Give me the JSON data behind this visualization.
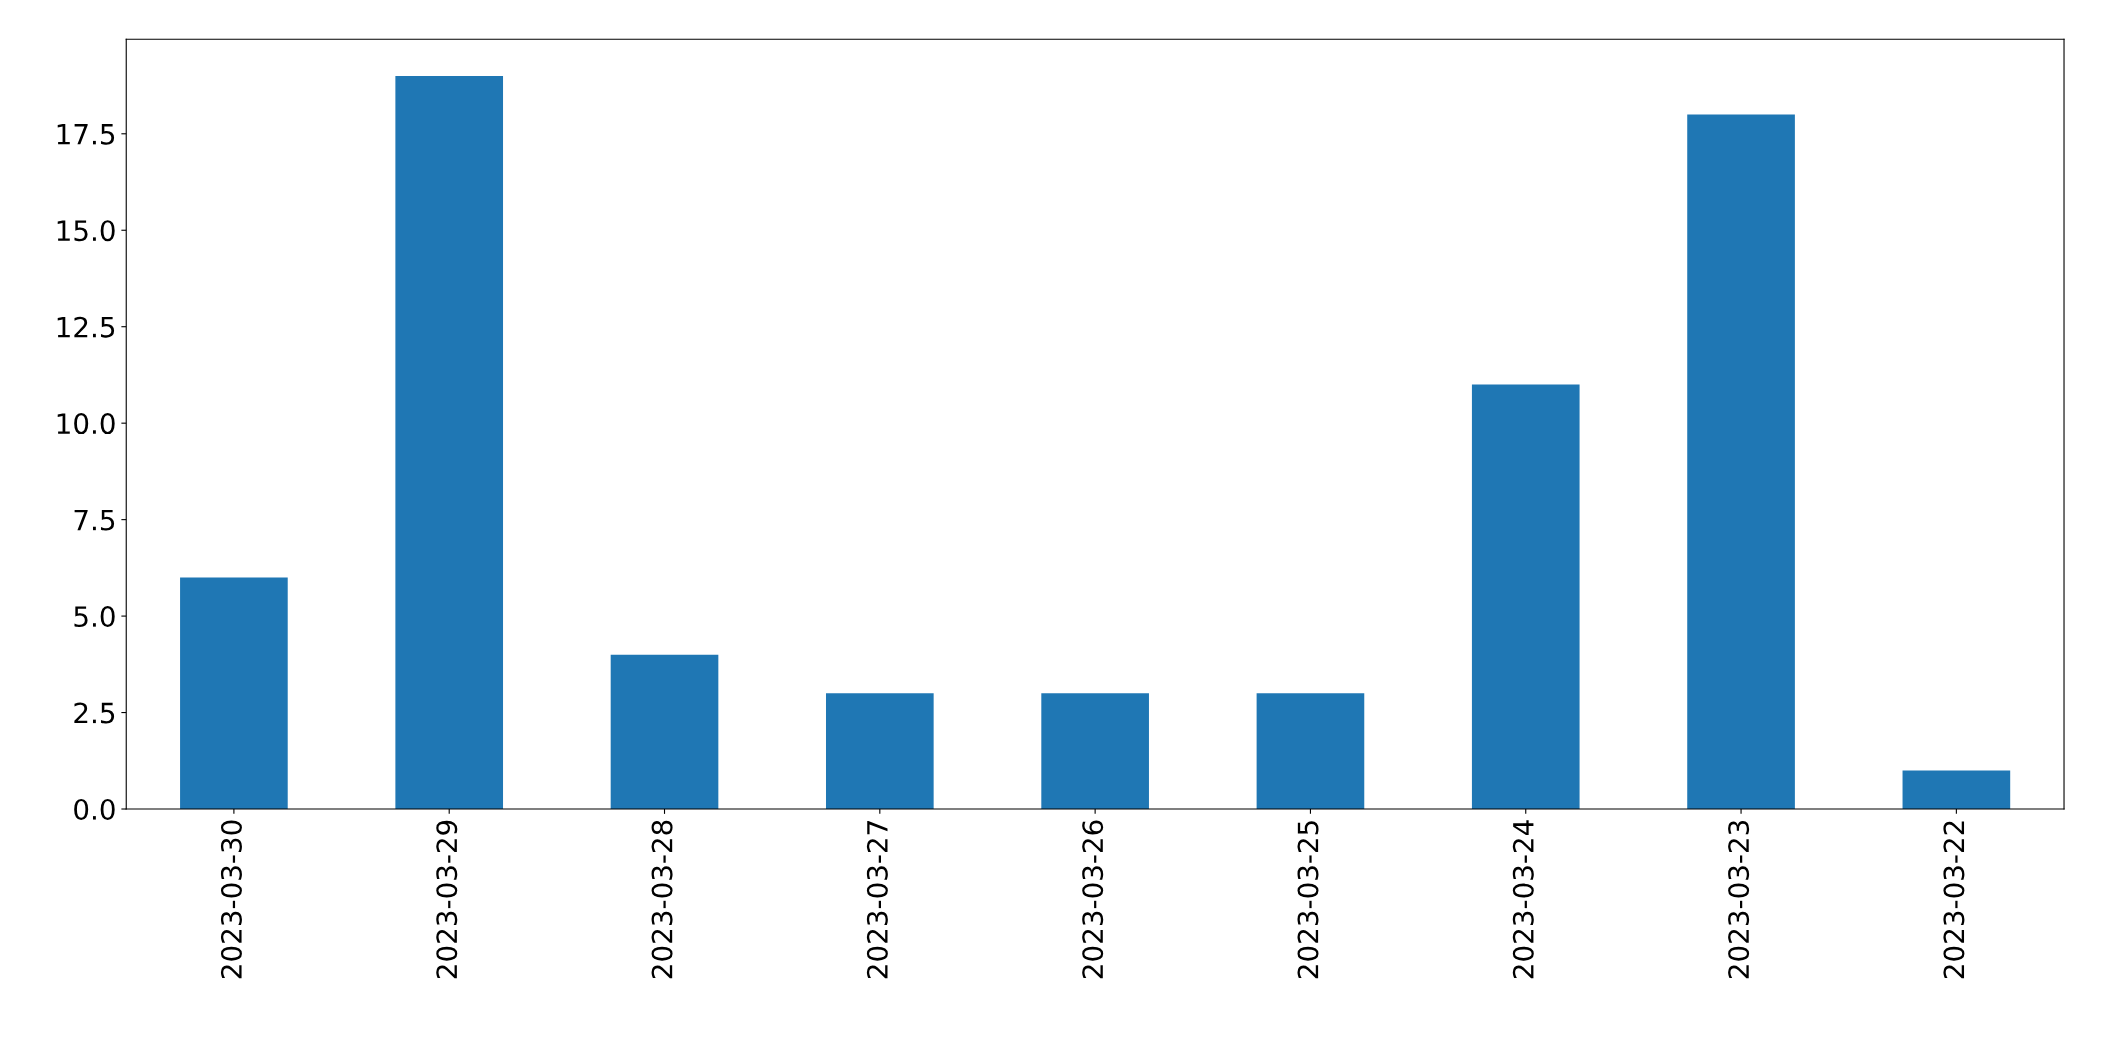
{
  "chart_data": {
    "type": "bar",
    "categories": [
      "2023-03-30",
      "2023-03-29",
      "2023-03-28",
      "2023-03-27",
      "2023-03-26",
      "2023-03-25",
      "2023-03-24",
      "2023-03-23",
      "2023-03-22"
    ],
    "values": [
      6,
      19,
      4,
      3,
      3,
      3,
      11,
      18,
      1
    ],
    "color": "#1f77b4",
    "ylim": [
      0,
      19.95
    ],
    "yticks": [
      {
        "value": 0,
        "label": "0.0"
      },
      {
        "value": 2.5,
        "label": "2.5"
      },
      {
        "value": 5,
        "label": "5.0"
      },
      {
        "value": 7.5,
        "label": "7.5"
      },
      {
        "value": 10,
        "label": "10.0"
      },
      {
        "value": 12.5,
        "label": "12.5"
      },
      {
        "value": 15,
        "label": "15.0"
      },
      {
        "value": 17.5,
        "label": "17.5"
      }
    ],
    "grid": false,
    "legend": false
  }
}
